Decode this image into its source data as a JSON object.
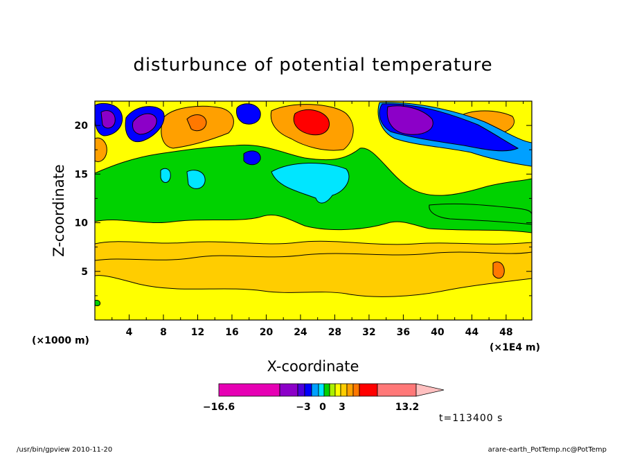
{
  "chart_data": {
    "type": "heatmap",
    "title": "disturbunce of potential temperature",
    "xlabel": "X-coordinate",
    "ylabel": "Z-coordinate",
    "x_unit_left": "(×1000 m)",
    "x_unit_right": "(×1E4 m)",
    "x_ticks": [
      "4",
      "8",
      "12",
      "16",
      "20",
      "24",
      "28",
      "32",
      "36",
      "40",
      "44",
      "48"
    ],
    "y_ticks": [
      "5",
      "10",
      "15",
      "20"
    ],
    "xlim": [
      0,
      51
    ],
    "ylim": [
      0,
      22.5
    ],
    "colorbar": {
      "min_label": "−16.6",
      "max_label": "13.2",
      "tick_labels": [
        "−3",
        "0",
        "3"
      ],
      "colors": [
        "#e600b4",
        "#8c00c8",
        "#4b00dc",
        "#0000ff",
        "#00a0ff",
        "#00e6ff",
        "#00d200",
        "#aaf000",
        "#ffff00",
        "#ffcd00",
        "#ffa000",
        "#ff7800",
        "#ff0000",
        "#ff7878",
        "#ffc0c0"
      ]
    },
    "annotation": "t=113400 s",
    "footer_left": "/usr/bin/gpview   2010-11-20",
    "footer_right": "arare-earth_PotTemp.nc@PotTemp"
  }
}
